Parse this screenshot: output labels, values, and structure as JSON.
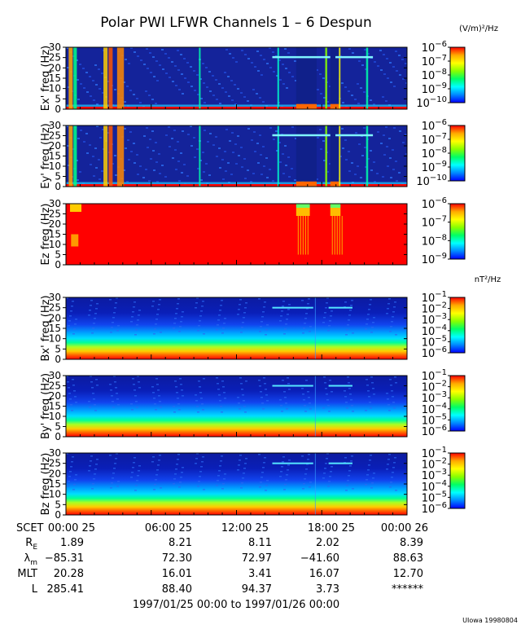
{
  "title": "Polar PWI LFWR Channels 1 – 6 Despun",
  "footer_credit": "UIowa 19980804",
  "time_range": "1997/01/25 00:00 to 1997/01/26 00:00",
  "colorbar_units": {
    "electric": "(V/m)²/Hz",
    "magnetic": "nT²/Hz"
  },
  "colormap": [
    "#0000ff",
    "#0088ff",
    "#00ffff",
    "#00ff66",
    "#88ff00",
    "#ffff00",
    "#ffaa00",
    "#ff0000"
  ],
  "chart_data": [
    {
      "type": "heatmap",
      "panel": "ex",
      "ylabel": "Ex' freq (Hz)",
      "ylim": [
        0,
        30
      ],
      "yticks": [
        0,
        5,
        10,
        15,
        20,
        25,
        30
      ],
      "color_scale": "log",
      "colorbar_range_exp": [
        -10,
        -6
      ],
      "colorbar_ticks": [
        {
          "exp": -6,
          "label": "10",
          "sup": "−6"
        },
        {
          "exp": -7,
          "label": "10",
          "sup": "−7"
        },
        {
          "exp": -8,
          "label": "10",
          "sup": "−8"
        },
        {
          "exp": -9,
          "label": "10",
          "sup": "−9"
        },
        {
          "exp": -10,
          "label": "10",
          "sup": "−10"
        }
      ]
    },
    {
      "type": "heatmap",
      "panel": "ey",
      "ylabel": "Ey' freq (Hz)",
      "ylim": [
        0,
        30
      ],
      "yticks": [
        0,
        5,
        10,
        15,
        20,
        25,
        30
      ],
      "color_scale": "log",
      "colorbar_range_exp": [
        -10,
        -6
      ],
      "colorbar_ticks": [
        {
          "exp": -6,
          "label": "10",
          "sup": "−6"
        },
        {
          "exp": -7,
          "label": "10",
          "sup": "−7"
        },
        {
          "exp": -8,
          "label": "10",
          "sup": "−8"
        },
        {
          "exp": -9,
          "label": "10",
          "sup": "−9"
        },
        {
          "exp": -10,
          "label": "10",
          "sup": "−10"
        }
      ]
    },
    {
      "type": "heatmap",
      "panel": "ez",
      "ylabel": "Ez freq (Hz)",
      "ylim": [
        0,
        30
      ],
      "yticks": [
        0,
        5,
        10,
        15,
        20,
        25,
        30
      ],
      "color_scale": "log",
      "colorbar_range_exp": [
        -9,
        -6
      ],
      "colorbar_ticks": [
        {
          "exp": -6,
          "label": "10",
          "sup": "−6"
        },
        {
          "exp": -7,
          "label": "10",
          "sup": "−7"
        },
        {
          "exp": -8,
          "label": "10",
          "sup": "−8"
        },
        {
          "exp": -9,
          "label": "10",
          "sup": "−9"
        }
      ]
    },
    {
      "type": "heatmap",
      "panel": "bx",
      "ylabel": "Bx' freq (Hz)",
      "ylim": [
        0,
        30
      ],
      "yticks": [
        0,
        5,
        10,
        15,
        20,
        25,
        30
      ],
      "color_scale": "log",
      "colorbar_range_exp": [
        -6,
        -1
      ],
      "colorbar_ticks": [
        {
          "exp": -1,
          "label": "10",
          "sup": "−1"
        },
        {
          "exp": -2,
          "label": "10",
          "sup": "−2"
        },
        {
          "exp": -3,
          "label": "10",
          "sup": "−3"
        },
        {
          "exp": -4,
          "label": "10",
          "sup": "−4"
        },
        {
          "exp": -5,
          "label": "10",
          "sup": "−5"
        },
        {
          "exp": -6,
          "label": "10",
          "sup": "−6"
        }
      ]
    },
    {
      "type": "heatmap",
      "panel": "by",
      "ylabel": "By' freq (Hz)",
      "ylim": [
        0,
        30
      ],
      "yticks": [
        0,
        5,
        10,
        15,
        20,
        25,
        30
      ],
      "color_scale": "log",
      "colorbar_range_exp": [
        -6,
        -1
      ],
      "colorbar_ticks": [
        {
          "exp": -1,
          "label": "10",
          "sup": "−1"
        },
        {
          "exp": -2,
          "label": "10",
          "sup": "−2"
        },
        {
          "exp": -3,
          "label": "10",
          "sup": "−3"
        },
        {
          "exp": -4,
          "label": "10",
          "sup": "−4"
        },
        {
          "exp": -5,
          "label": "10",
          "sup": "−5"
        },
        {
          "exp": -6,
          "label": "10",
          "sup": "−6"
        }
      ]
    },
    {
      "type": "heatmap",
      "panel": "bz",
      "ylabel": "Bz freq (Hz)",
      "ylim": [
        0,
        30
      ],
      "yticks": [
        0,
        5,
        10,
        15,
        20,
        25,
        30
      ],
      "color_scale": "log",
      "colorbar_range_exp": [
        -6,
        -1
      ],
      "colorbar_ticks": [
        {
          "exp": -1,
          "label": "10",
          "sup": "−1"
        },
        {
          "exp": -2,
          "label": "10",
          "sup": "−2"
        },
        {
          "exp": -3,
          "label": "10",
          "sup": "−3"
        },
        {
          "exp": -4,
          "label": "10",
          "sup": "−4"
        },
        {
          "exp": -5,
          "label": "10",
          "sup": "−5"
        },
        {
          "exp": -6,
          "label": "10",
          "sup": "−6"
        }
      ]
    }
  ],
  "x_axis": {
    "label": "SCET",
    "ticks": [
      "00:00 25",
      "06:00 25",
      "12:00 25",
      "18:00 25",
      "00:00 26"
    ]
  },
  "ephemeris": [
    {
      "label": "R",
      "sub": "E",
      "values": [
        "1.89",
        "8.21",
        "8.11",
        "2.02",
        "8.39"
      ]
    },
    {
      "label": "λ",
      "sub": "m",
      "values": [
        "−85.31",
        "72.30",
        "72.97",
        "−41.60",
        "88.63"
      ]
    },
    {
      "label": "MLT",
      "sub": "",
      "values": [
        "20.28",
        "16.01",
        "3.41",
        "16.07",
        "12.70"
      ]
    },
    {
      "label": "L",
      "sub": "",
      "values": [
        "285.41",
        "88.40",
        "94.37",
        "3.73",
        "******"
      ]
    }
  ]
}
